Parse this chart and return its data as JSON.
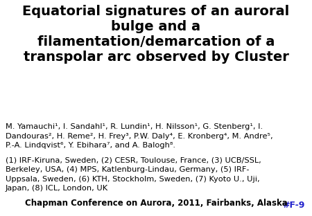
{
  "title": "Equatorial signatures of an auroral\nbulge and a\nfilamentation/demarcation of a\ntranspolar arc observed by Cluster",
  "title_fontsize": 14.0,
  "title_color": "#000000",
  "authors_line1": "M. Yamauchi¹, I. Sandahl¹, R. Lundin¹, H. Nilsson¹, G. Stenberg¹, I.",
  "authors_sandahl_bold": "Sandahl",
  "authors_line2": "Dandouras², H. Reme², H. Frey³, P.W. Daly⁴, E. Kronberg⁴, M. Andre⁵,",
  "authors_line3": "P.-A. Lindqvist⁶, Y. Ebihara⁷, and A. Balogh⁸.",
  "affiliations_line1": "(1) IRF-Kiruna, Sweden, (2) CESR, Toulouse, France, (3) UCB/SSL,",
  "affiliations_line2": "Berkeley, USA, (4) MPS, Katlenburg-Lindau, Germany, (5) IRF-",
  "affiliations_line3": "Uppsala, Sweden, (6) KTH, Stockholm, Sweden, (7) Kyoto U., Uji,",
  "affiliations_line4": "Japan, (8) ICL, London, UK",
  "poster_id": "#F-9",
  "poster_id_color": "#2222cc",
  "conference": "Chapman Conference on Aurora, 2011, Fairbanks, Alaska",
  "bg_color": "#ffffff",
  "text_color": "#000000",
  "font_size_body": 8.2,
  "font_size_conference": 8.5,
  "font_size_poster": 9.0
}
